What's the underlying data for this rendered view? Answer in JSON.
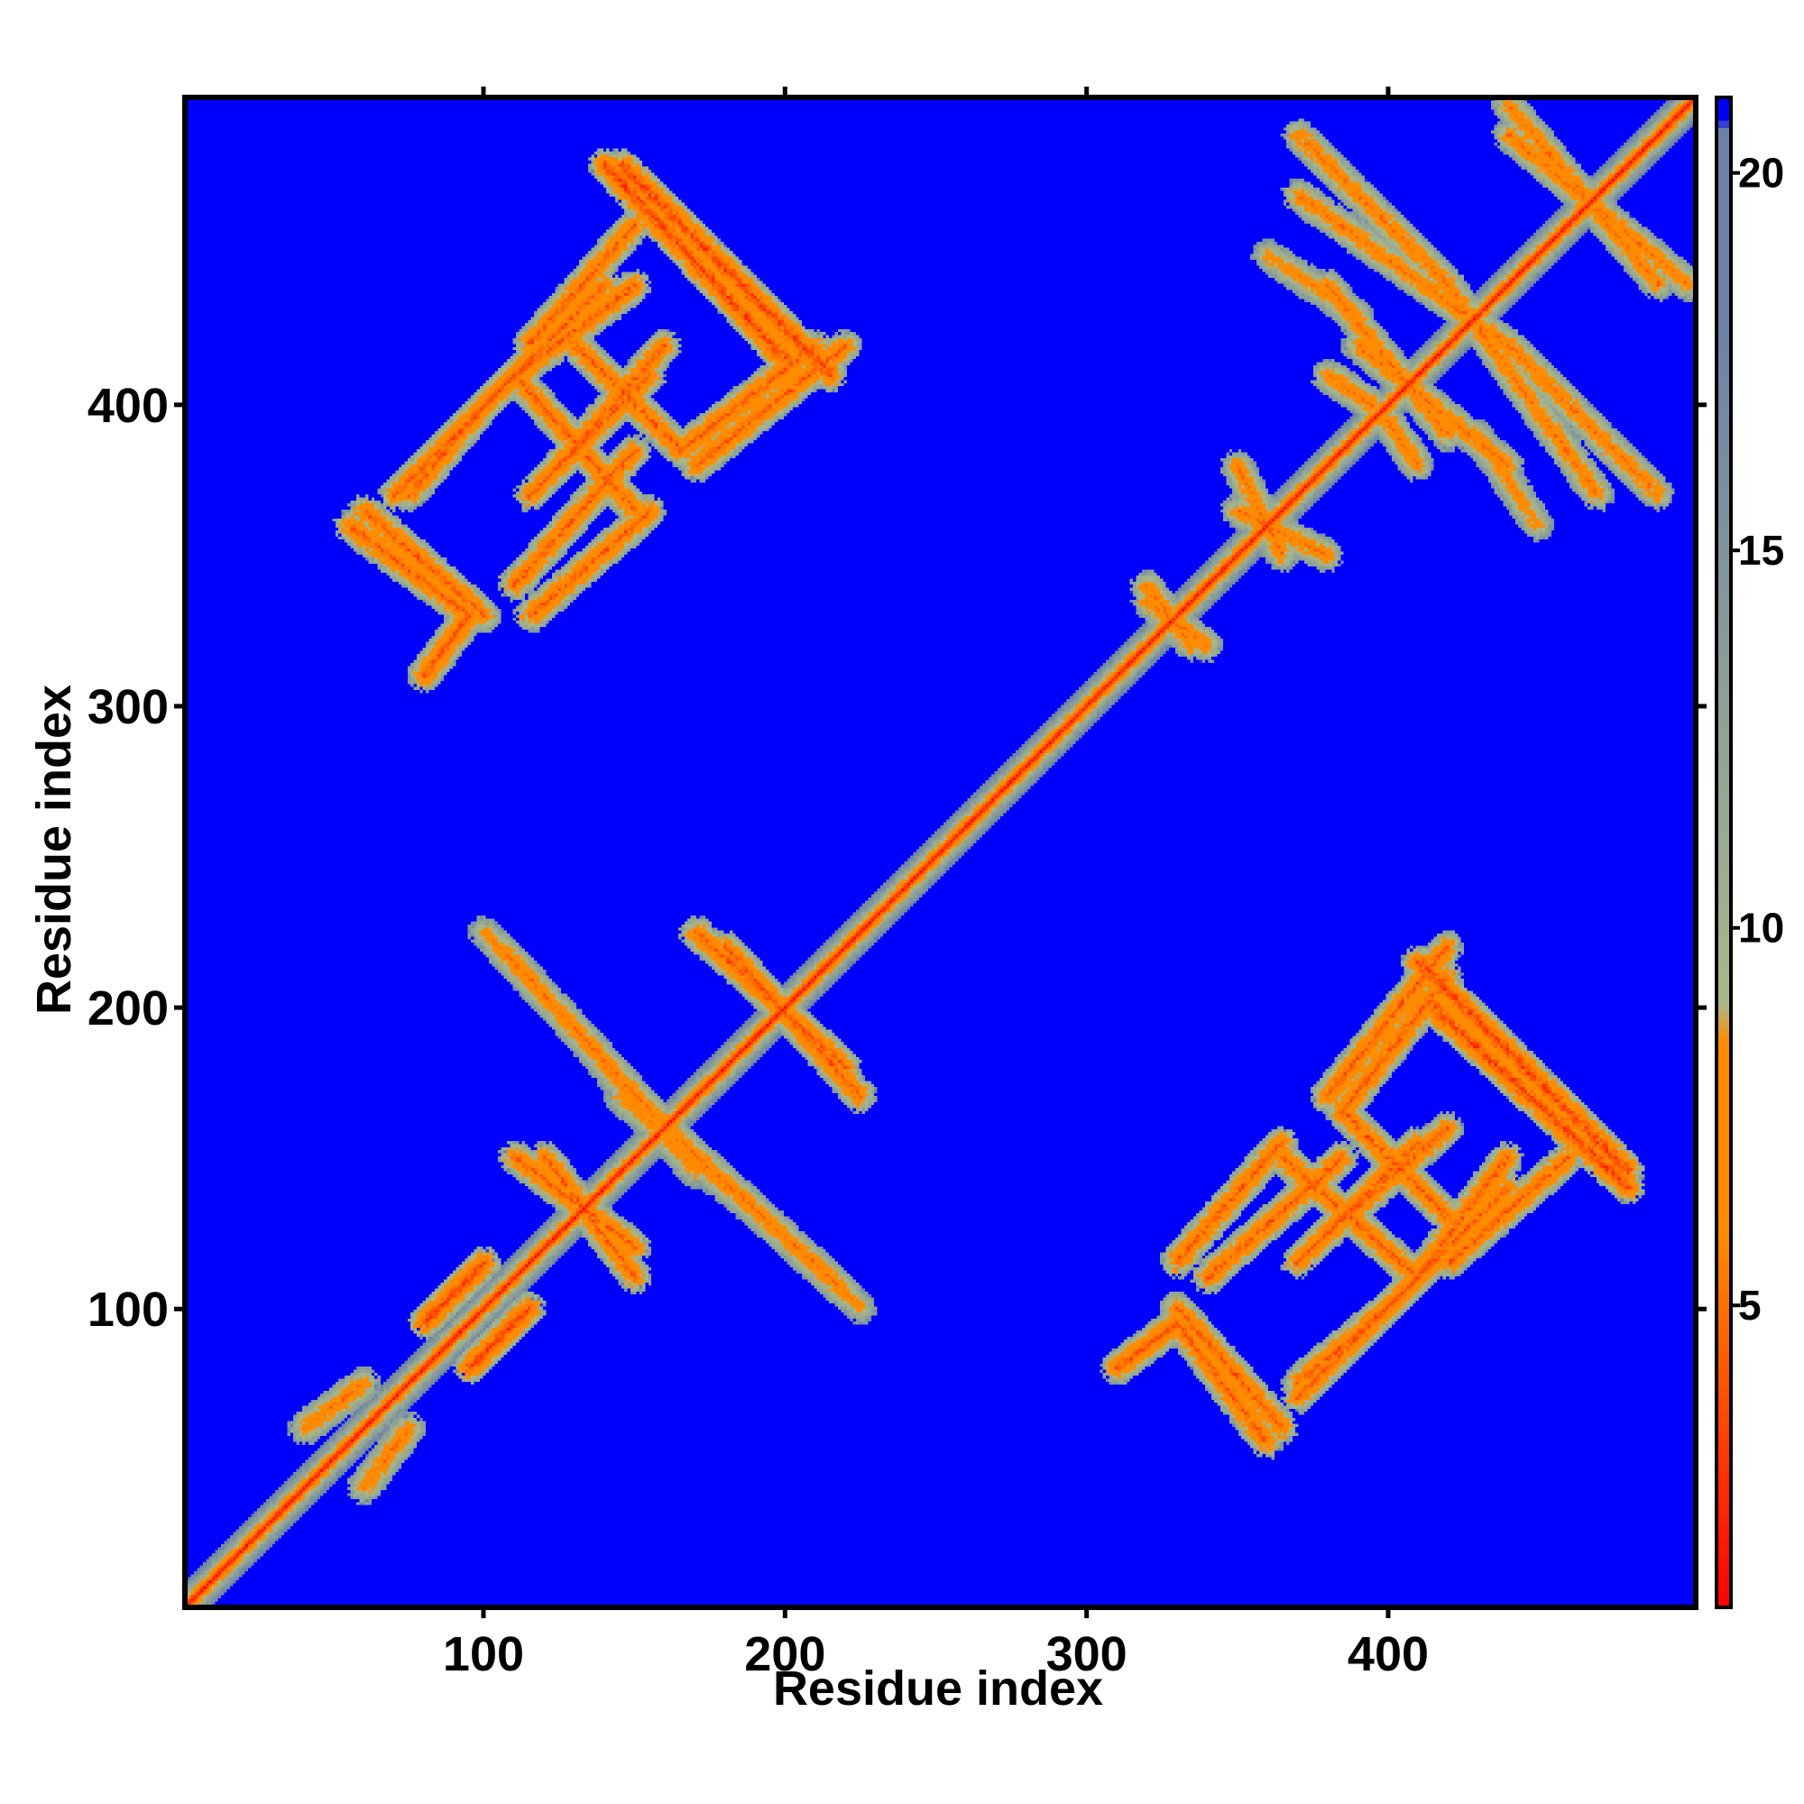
{
  "chart_data": {
    "type": "heatmap",
    "title": "",
    "xlabel": "Residue index",
    "ylabel": "Residue index",
    "xlim": [
      1,
      502
    ],
    "ylim": [
      1,
      502
    ],
    "x_ticks": [
      100,
      200,
      300,
      400
    ],
    "y_ticks": [
      100,
      200,
      300,
      400
    ],
    "grid": false,
    "colorbar": {
      "ticks": [
        5,
        10,
        15,
        20
      ],
      "range": [
        1,
        21
      ],
      "colors": {
        "low": "#ff0000",
        "mid_low": "#ff8c00",
        "mid": "#a8b88a",
        "high": "#6b82a8",
        "background": "#0000ff"
      }
    },
    "background_value": 21,
    "diagonal": {
      "value": 2,
      "band_halfwidth": 4
    },
    "contact_segments": [
      {
        "from": [
          60,
          40
        ],
        "to": [
          75,
          60
        ],
        "direction": "anti",
        "value": 10
      },
      {
        "from": [
          95,
          80
        ],
        "to": [
          115,
          100
        ],
        "direction": "anti",
        "value": 8
      },
      {
        "from": [
          105,
          220
        ],
        "to": [
          160,
          160
        ],
        "direction": "anti",
        "value": 10
      },
      {
        "from": [
          120,
          150
        ],
        "to": [
          150,
          110
        ],
        "direction": "anti",
        "value": 9
      },
      {
        "from": [
          170,
          150
        ],
        "to": [
          225,
          100
        ],
        "direction": "anti",
        "value": 11
      },
      {
        "from": [
          180,
          220
        ],
        "to": [
          225,
          170
        ],
        "direction": "anti",
        "value": 9
      },
      {
        "from": [
          145,
          170
        ],
        "to": [
          180,
          140
        ],
        "direction": "anti",
        "value": 11
      },
      {
        "from": [
          80,
          310
        ],
        "to": [
          95,
          330
        ],
        "direction": "para",
        "value": 9
      },
      {
        "from": [
          55,
          360
        ],
        "to": [
          95,
          330
        ],
        "direction": "anti",
        "value": 9
      },
      {
        "from": [
          75,
          370
        ],
        "to": [
          100,
          400
        ],
        "direction": "para",
        "value": 9
      },
      {
        "from": [
          100,
          400
        ],
        "to": [
          140,
          440
        ],
        "direction": "para",
        "value": 9
      },
      {
        "from": [
          115,
          330
        ],
        "to": [
          155,
          365
        ],
        "direction": "para",
        "value": 9
      },
      {
        "from": [
          115,
          370
        ],
        "to": [
          155,
          410
        ],
        "direction": "para",
        "value": 9
      },
      {
        "from": [
          130,
          420
        ],
        "to": [
          165,
          385
        ],
        "direction": "anti",
        "value": 9
      },
      {
        "from": [
          165,
          385
        ],
        "to": [
          210,
          420
        ],
        "direction": "para",
        "value": 9
      },
      {
        "from": [
          145,
          480
        ],
        "to": [
          215,
          410
        ],
        "direction": "anti",
        "value": 8
      },
      {
        "from": [
          115,
          420
        ],
        "to": [
          150,
          460
        ],
        "direction": "para",
        "value": 9
      },
      {
        "from": [
          310,
          80
        ],
        "to": [
          330,
          95
        ],
        "direction": "para",
        "value": 9
      },
      {
        "from": [
          330,
          100
        ],
        "to": [
          365,
          60
        ],
        "direction": "anti",
        "value": 9
      },
      {
        "from": [
          340,
          110
        ],
        "to": [
          385,
          150
        ],
        "direction": "para",
        "value": 9
      },
      {
        "from": [
          370,
          70
        ],
        "to": [
          410,
          110
        ],
        "direction": "para",
        "value": 9
      },
      {
        "from": [
          365,
          150
        ],
        "to": [
          410,
          110
        ],
        "direction": "anti",
        "value": 9
      },
      {
        "from": [
          410,
          110
        ],
        "to": [
          440,
          150
        ],
        "direction": "para",
        "value": 9
      },
      {
        "from": [
          415,
          200
        ],
        "to": [
          480,
          140
        ],
        "direction": "anti",
        "value": 8
      },
      {
        "from": [
          380,
          170
        ],
        "to": [
          420,
          220
        ],
        "direction": "para",
        "value": 9
      },
      {
        "from": [
          380,
          125
        ],
        "to": [
          420,
          160
        ],
        "direction": "para",
        "value": 9
      },
      {
        "from": [
          350,
          380
        ],
        "to": [
          365,
          350
        ],
        "direction": "anti",
        "value": 10
      },
      {
        "from": [
          320,
          340
        ],
        "to": [
          335,
          320
        ],
        "direction": "anti",
        "value": 10
      },
      {
        "from": [
          370,
          470
        ],
        "to": [
          440,
          420
        ],
        "direction": "anti",
        "value": 10
      },
      {
        "from": [
          380,
          440
        ],
        "to": [
          420,
          390
        ],
        "direction": "anti",
        "value": 10
      },
      {
        "from": [
          380,
          410
        ],
        "to": [
          395,
          400
        ],
        "direction": "anti",
        "value": 10
      },
      {
        "from": [
          440,
          490
        ],
        "to": [
          500,
          440
        ],
        "direction": "anti",
        "value": 10
      },
      {
        "from": [
          440,
          420
        ],
        "to": [
          490,
          370
        ],
        "direction": "anti",
        "value": 10
      },
      {
        "from": [
          430,
          390
        ],
        "to": [
          450,
          360
        ],
        "direction": "anti",
        "value": 11
      }
    ]
  }
}
